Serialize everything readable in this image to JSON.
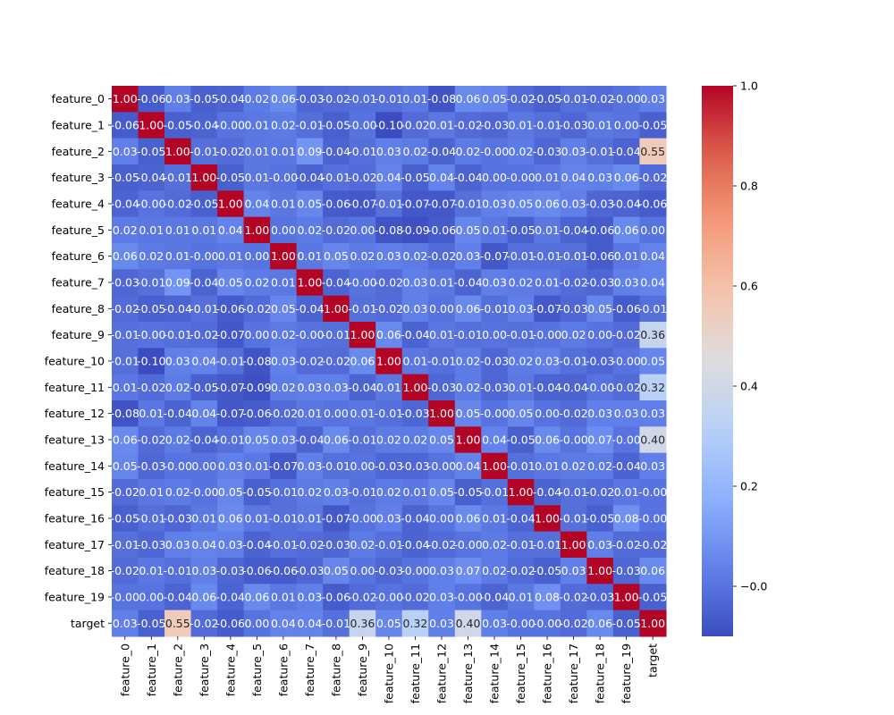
{
  "chart_data": {
    "type": "heatmap",
    "title": "",
    "xlabel": "",
    "ylabel": "",
    "colormap": "coolwarm",
    "value_range": [
      -0.1,
      1.0
    ],
    "labels": [
      "feature_0",
      "feature_1",
      "feature_2",
      "feature_3",
      "feature_4",
      "feature_5",
      "feature_6",
      "feature_7",
      "feature_8",
      "feature_9",
      "feature_10",
      "feature_11",
      "feature_12",
      "feature_13",
      "feature_14",
      "feature_15",
      "feature_16",
      "feature_17",
      "feature_18",
      "feature_19",
      "target"
    ],
    "matrix": [
      [
        1.0,
        -0.06,
        0.03,
        -0.05,
        -0.04,
        0.02,
        0.06,
        -0.03,
        -0.02,
        -0.01,
        -0.01,
        0.01,
        -0.08,
        0.06,
        0.05,
        -0.02,
        -0.05,
        -0.01,
        -0.02,
        -0.0,
        0.03
      ],
      [
        -0.06,
        1.0,
        -0.05,
        -0.04,
        -0.0,
        0.01,
        0.02,
        -0.01,
        -0.05,
        -0.0,
        -0.1,
        -0.02,
        0.01,
        -0.02,
        -0.03,
        0.01,
        -0.01,
        -0.03,
        0.01,
        0.0,
        -0.05
      ],
      [
        0.03,
        -0.05,
        1.0,
        -0.01,
        -0.02,
        0.01,
        0.01,
        0.09,
        -0.04,
        -0.01,
        0.03,
        0.02,
        -0.04,
        0.02,
        -0.0,
        0.02,
        -0.03,
        0.03,
        -0.01,
        -0.04,
        0.55
      ],
      [
        -0.05,
        -0.04,
        -0.01,
        1.0,
        -0.05,
        0.01,
        -0.0,
        -0.04,
        -0.01,
        -0.02,
        0.04,
        -0.05,
        0.04,
        -0.04,
        0.0,
        -0.0,
        0.01,
        0.04,
        0.03,
        0.06,
        -0.02
      ],
      [
        -0.04,
        -0.0,
        -0.02,
        -0.05,
        1.0,
        0.04,
        0.01,
        0.05,
        -0.06,
        -0.07,
        -0.01,
        -0.07,
        -0.07,
        -0.01,
        0.03,
        0.05,
        0.06,
        0.03,
        -0.03,
        -0.04,
        -0.06
      ],
      [
        0.02,
        0.01,
        0.01,
        0.01,
        0.04,
        1.0,
        0.0,
        0.02,
        -0.02,
        0.0,
        -0.08,
        -0.09,
        -0.06,
        0.05,
        0.01,
        -0.05,
        0.01,
        -0.04,
        -0.06,
        0.06,
        0.0
      ],
      [
        0.06,
        0.02,
        0.01,
        -0.0,
        0.01,
        0.0,
        1.0,
        0.01,
        0.05,
        0.02,
        0.03,
        0.02,
        -0.02,
        0.03,
        -0.07,
        -0.01,
        -0.01,
        -0.01,
        -0.06,
        0.01,
        0.04
      ],
      [
        -0.03,
        -0.01,
        0.09,
        -0.04,
        0.05,
        0.02,
        0.01,
        1.0,
        -0.04,
        -0.0,
        -0.02,
        0.03,
        0.01,
        -0.04,
        0.03,
        0.02,
        0.01,
        -0.02,
        -0.03,
        0.03,
        0.04
      ],
      [
        -0.02,
        -0.05,
        -0.04,
        -0.01,
        -0.06,
        -0.02,
        0.05,
        -0.04,
        1.0,
        -0.01,
        -0.02,
        0.03,
        0.0,
        0.06,
        -0.01,
        0.03,
        -0.07,
        -0.03,
        0.05,
        -0.06,
        -0.01
      ],
      [
        -0.01,
        -0.0,
        -0.01,
        -0.02,
        -0.07,
        0.0,
        0.02,
        -0.0,
        -0.01,
        1.0,
        0.06,
        -0.04,
        0.01,
        -0.01,
        0.0,
        -0.01,
        -0.0,
        0.02,
        0.0,
        -0.02,
        0.36
      ],
      [
        -0.01,
        -0.1,
        0.03,
        0.04,
        -0.01,
        -0.08,
        0.03,
        -0.02,
        -0.02,
        0.06,
        1.0,
        0.01,
        -0.01,
        0.02,
        -0.03,
        0.02,
        0.03,
        -0.01,
        -0.03,
        -0.0,
        0.05
      ],
      [
        0.01,
        -0.02,
        0.02,
        -0.05,
        -0.07,
        -0.09,
        0.02,
        0.03,
        0.03,
        -0.04,
        0.01,
        1.0,
        -0.03,
        0.02,
        -0.03,
        0.01,
        -0.04,
        -0.04,
        -0.0,
        -0.02,
        0.32
      ],
      [
        -0.08,
        0.01,
        -0.04,
        0.04,
        -0.07,
        -0.06,
        -0.02,
        0.01,
        0.0,
        0.01,
        -0.01,
        -0.03,
        1.0,
        0.05,
        -0.0,
        0.05,
        0.0,
        -0.02,
        0.03,
        0.03,
        0.03
      ],
      [
        0.06,
        -0.02,
        0.02,
        -0.04,
        -0.01,
        0.05,
        0.03,
        -0.04,
        0.06,
        -0.01,
        0.02,
        0.02,
        0.05,
        1.0,
        0.04,
        -0.05,
        0.06,
        -0.0,
        0.07,
        -0.0,
        0.4
      ],
      [
        0.05,
        -0.03,
        -0.0,
        0.0,
        0.03,
        0.01,
        -0.07,
        0.03,
        -0.01,
        0.0,
        -0.03,
        -0.03,
        -0.0,
        0.04,
        1.0,
        -0.01,
        0.01,
        0.02,
        0.02,
        -0.04,
        0.03
      ],
      [
        -0.02,
        0.01,
        0.02,
        -0.0,
        0.05,
        -0.05,
        -0.01,
        0.02,
        0.03,
        -0.01,
        0.02,
        0.01,
        0.05,
        -0.05,
        -0.01,
        1.0,
        -0.04,
        -0.01,
        -0.02,
        0.01,
        -0.0
      ],
      [
        -0.05,
        -0.01,
        -0.03,
        0.01,
        0.06,
        0.01,
        -0.01,
        0.01,
        -0.07,
        -0.0,
        0.03,
        -0.04,
        0.0,
        0.06,
        0.01,
        -0.04,
        1.0,
        -0.01,
        -0.05,
        0.08,
        -0.0
      ],
      [
        -0.01,
        -0.03,
        0.03,
        0.04,
        0.03,
        -0.04,
        -0.01,
        -0.02,
        -0.03,
        0.02,
        -0.01,
        -0.04,
        -0.02,
        -0.0,
        0.02,
        -0.01,
        -0.01,
        1.0,
        0.03,
        -0.02,
        -0.02
      ],
      [
        -0.02,
        0.01,
        -0.01,
        0.03,
        -0.03,
        -0.06,
        -0.06,
        -0.03,
        0.05,
        0.0,
        -0.03,
        -0.0,
        0.03,
        0.07,
        0.02,
        -0.02,
        -0.05,
        0.03,
        1.0,
        -0.03,
        0.06
      ],
      [
        -0.0,
        0.0,
        -0.04,
        0.06,
        -0.04,
        0.06,
        0.01,
        0.03,
        -0.06,
        -0.02,
        -0.0,
        -0.02,
        0.03,
        -0.0,
        -0.04,
        0.01,
        0.08,
        -0.02,
        -0.03,
        1.0,
        -0.05
      ],
      [
        0.03,
        -0.05,
        0.55,
        -0.02,
        -0.06,
        0.0,
        0.04,
        0.04,
        -0.01,
        0.36,
        0.05,
        0.32,
        0.03,
        0.4,
        0.03,
        -0.0,
        -0.0,
        -0.02,
        0.06,
        -0.05,
        1.0
      ]
    ],
    "colorbar": {
      "ticks": [
        -0.0,
        0.2,
        0.4,
        0.6,
        0.8,
        1.0
      ],
      "tick_labels": [
        "−0.0",
        "0.2",
        "0.4",
        "0.6",
        "0.8",
        "1.0"
      ]
    },
    "legend": "colorbar-right",
    "grid": false
  }
}
